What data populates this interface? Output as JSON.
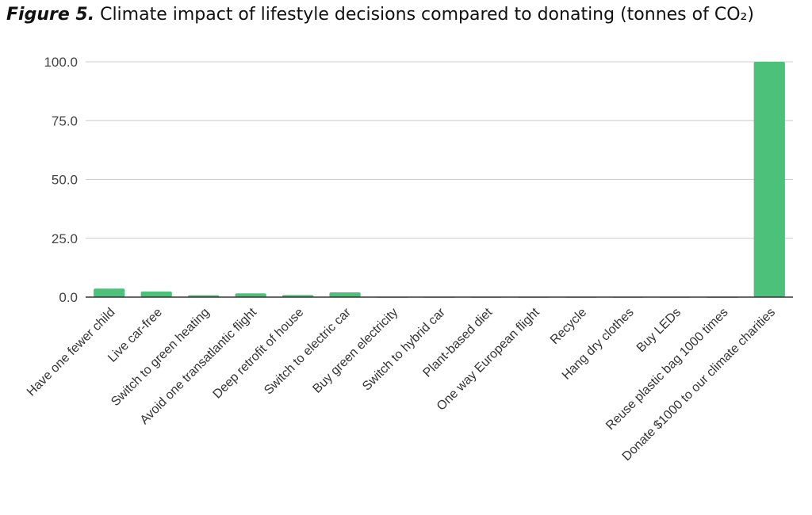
{
  "chart_data": {
    "type": "bar",
    "title_prefix": "Figure 5.",
    "title": "Climate impact of lifestyle decisions compared to donating (tonnes of CO₂)",
    "xlabel": "",
    "ylabel": "",
    "ylim": [
      0,
      100
    ],
    "yticks": [
      "0.0",
      "25.0",
      "50.0",
      "75.0",
      "100.0"
    ],
    "grid": true,
    "bar_color": "#4cc17a",
    "categories": [
      "Have one fewer child",
      "Live car-free",
      "Switch to green heating",
      "Avoid one transatlantic flight",
      "Deep retrofit of house",
      "Switch to electric car",
      "Buy green electricity",
      "Switch to hybrid car",
      "Plant-based diet",
      "One way European flight",
      "Recycle",
      "Hang dry clothes",
      "Buy LEDs",
      "Reuse plastic bag 1000 times",
      "Donate $1000 to our climate charities"
    ],
    "values": [
      3.6,
      2.4,
      0.8,
      1.6,
      0.9,
      2.0,
      0.1,
      0.1,
      0.1,
      0.1,
      0.1,
      0.1,
      0.1,
      0.05,
      100
    ]
  }
}
